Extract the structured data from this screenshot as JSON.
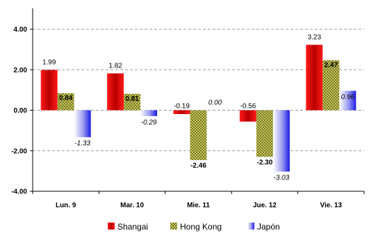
{
  "chart_data": {
    "type": "bar",
    "categories": [
      "Lun. 9",
      "Mar. 10",
      "Mie. 11",
      "Jue. 12",
      "Vie. 13"
    ],
    "series": [
      {
        "name": "Shangai",
        "values": [
          1.99,
          1.82,
          -0.19,
          -0.56,
          3.23
        ],
        "labels": [
          "1.99",
          "1.82",
          "-0.19",
          "-0.56",
          "3.23"
        ],
        "color": "#e00000"
      },
      {
        "name": "Hong Kong",
        "values": [
          0.84,
          0.81,
          -2.46,
          -2.3,
          2.47
        ],
        "labels": [
          "0.84",
          "0.81",
          "-2.46",
          "-2.30",
          "2.47"
        ],
        "color": "#9a9a1a"
      },
      {
        "name": "Japón",
        "values": [
          -1.33,
          -0.29,
          0.0,
          -3.03,
          0.96
        ],
        "labels": [
          "-1.33",
          "-0.29",
          "0.00",
          "-3.03",
          "0.96"
        ],
        "color": "#2020e0"
      }
    ],
    "yticks": [
      "4.00",
      "2.00",
      "0.00",
      "-2.00",
      "-4.00"
    ],
    "ylim": [
      -4,
      4
    ],
    "grid": true,
    "legend_position": "bottom"
  }
}
